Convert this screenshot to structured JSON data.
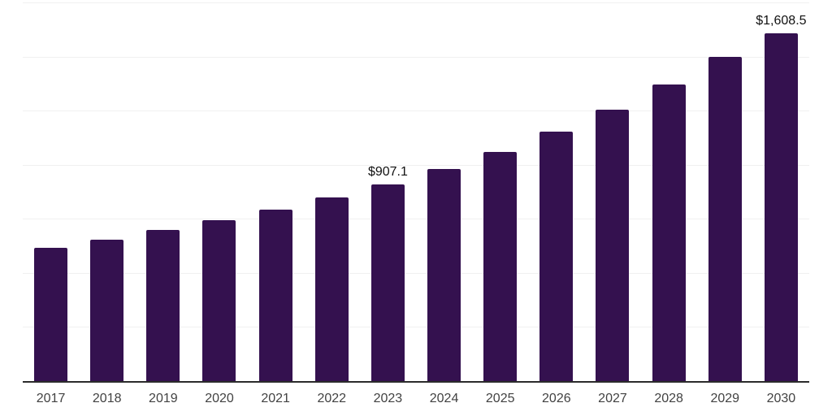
{
  "chart_data": {
    "type": "bar",
    "title": "",
    "xlabel": "",
    "ylabel": "",
    "categories": [
      "2017",
      "2018",
      "2019",
      "2020",
      "2021",
      "2022",
      "2023",
      "2024",
      "2025",
      "2026",
      "2027",
      "2028",
      "2029",
      "2030"
    ],
    "values": [
      615,
      655,
      700,
      742,
      792,
      850,
      907.1,
      979,
      1060,
      1152,
      1255,
      1372,
      1497,
      1608.5
    ],
    "data_labels": {
      "2023": "$907.1",
      "2030": "$1,608.5"
    },
    "ylim": [
      0,
      1750
    ],
    "gridline_step": 250,
    "grid": true,
    "legend": "none",
    "bar_color": "#34114f",
    "gridline_color": "#f0f0f0",
    "axis_color": "#2b2b2b",
    "data_label_color": "#111111",
    "tick_color": "#424242"
  }
}
